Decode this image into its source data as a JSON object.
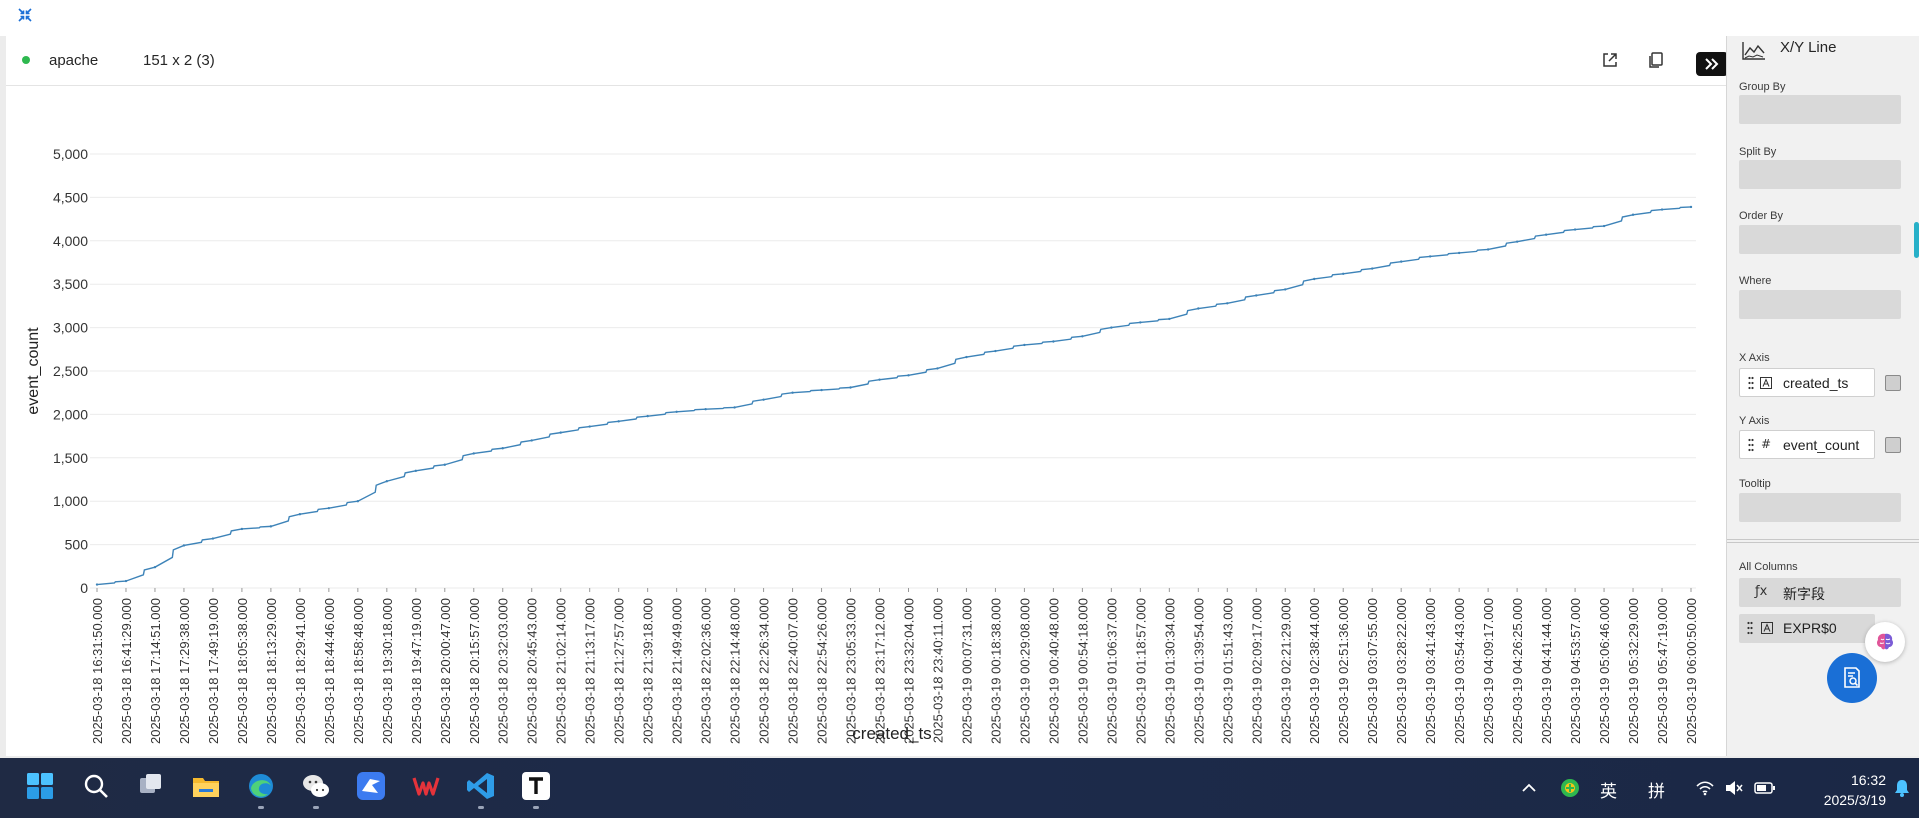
{
  "toolbar": {
    "source_name": "apache",
    "dimensions": "151 x 2 (3)"
  },
  "right_panel": {
    "chart_type": "X/Y Line",
    "sections": {
      "group_by": "Group By",
      "split_by": "Split By",
      "order_by": "Order By",
      "where": "Where",
      "x_axis": "X Axis",
      "y_axis": "Y Axis",
      "tooltip": "Tooltip",
      "all_columns": "All Columns"
    },
    "x_axis_field": {
      "type_icon": "text-type-icon",
      "name": "created_ts"
    },
    "y_axis_field": {
      "type_icon": "#",
      "name": "event_count"
    },
    "columns": [
      {
        "icon": "ƒx",
        "name": "新字段"
      },
      {
        "icon": "A",
        "name": "EXPR$0"
      }
    ]
  },
  "chart_data": {
    "type": "line",
    "title": "",
    "xlabel": "created_ts",
    "ylabel": "event_count",
    "ylim": [
      0,
      5000
    ],
    "yticks": [
      0,
      500,
      1000,
      1500,
      2000,
      2500,
      3000,
      3500,
      4000,
      4500,
      5000
    ],
    "grid": true,
    "legend": "none",
    "line_color": "#3d83b8",
    "x_tick_labels": [
      "2025-03-18 16:31:50.000",
      "2025-03-18 16:41:29.000",
      "2025-03-18 17:14:51.000",
      "2025-03-18 17:29:38.000",
      "2025-03-18 17:49:19.000",
      "2025-03-18 18:05:38.000",
      "2025-03-18 18:13:29.000",
      "2025-03-18 18:29:41.000",
      "2025-03-18 18:44:46.000",
      "2025-03-18 18:58:48.000",
      "2025-03-18 19:30:18.000",
      "2025-03-18 19:47:19.000",
      "2025-03-18 20:00:47.000",
      "2025-03-18 20:15:57.000",
      "2025-03-18 20:32:03.000",
      "2025-03-18 20:45:43.000",
      "2025-03-18 21:02:14.000",
      "2025-03-18 21:13:17.000",
      "2025-03-18 21:27:57.000",
      "2025-03-18 21:39:18.000",
      "2025-03-18 21:49:49.000",
      "2025-03-18 22:02:36.000",
      "2025-03-18 22:14:48.000",
      "2025-03-18 22:26:34.000",
      "2025-03-18 22:40:07.000",
      "2025-03-18 22:54:26.000",
      "2025-03-18 23:05:33.000",
      "2025-03-18 23:17:12.000",
      "2025-03-18 23:32:04.000",
      "2025-03-18 23:40:11.000",
      "2025-03-19 00:07:31.000",
      "2025-03-19 00:18:38.000",
      "2025-03-19 00:29:08.000",
      "2025-03-19 00:40:48.000",
      "2025-03-19 00:54:18.000",
      "2025-03-19 01:06:37.000",
      "2025-03-19 01:18:57.000",
      "2025-03-19 01:30:34.000",
      "2025-03-19 01:39:54.000",
      "2025-03-19 01:51:43.000",
      "2025-03-19 02:09:17.000",
      "2025-03-19 02:21:29.000",
      "2025-03-19 02:38:44.000",
      "2025-03-19 02:51:36.000",
      "2025-03-19 03:07:55.000",
      "2025-03-19 03:28:22.000",
      "2025-03-19 03:41:43.000",
      "2025-03-19 03:54:43.000",
      "2025-03-19 04:09:17.000",
      "2025-03-19 04:26:25.000",
      "2025-03-19 04:41:44.000",
      "2025-03-19 04:53:57.000",
      "2025-03-19 05:06:46.000",
      "2025-03-19 05:32:29.000",
      "2025-03-19 05:47:19.000",
      "2025-03-19 06:00:50.000"
    ],
    "y_at_ticks": [
      40,
      80,
      240,
      490,
      570,
      680,
      710,
      850,
      920,
      1000,
      1230,
      1350,
      1420,
      1550,
      1610,
      1700,
      1790,
      1860,
      1920,
      1980,
      2030,
      2060,
      2080,
      2170,
      2250,
      2280,
      2310,
      2400,
      2450,
      2530,
      2660,
      2730,
      2800,
      2840,
      2900,
      3000,
      3060,
      3100,
      3220,
      3280,
      3370,
      3440,
      3560,
      3620,
      3680,
      3760,
      3820,
      3860,
      3900,
      3990,
      4070,
      4130,
      4170,
      4300,
      4360,
      4390
    ]
  },
  "taskbar": {
    "apps": [
      "windows-start-icon",
      "search-icon",
      "task-view-icon",
      "file-explorer-icon",
      "edge-browser-icon",
      "wechat-icon",
      "feishu-icon",
      "wps-icon",
      "vscode-icon",
      "typora-icon"
    ],
    "tray": {
      "ime_lang": "英",
      "ime_mode": "拼",
      "time": "16:32",
      "date": "2025/3/19"
    }
  }
}
